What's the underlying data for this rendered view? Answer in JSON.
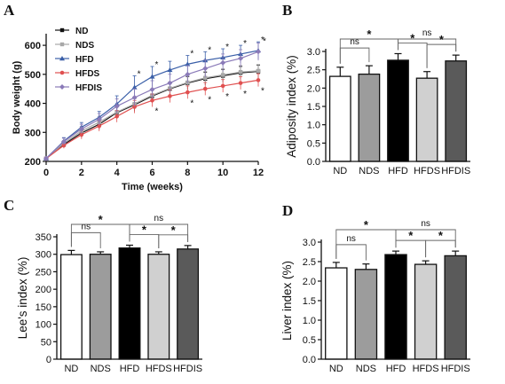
{
  "panels": [
    "A",
    "B",
    "C",
    "D"
  ],
  "chart_data": [
    {
      "id": "A",
      "type": "line",
      "xlabel": "Time (weeks)",
      "ylabel": "Body weight (g)",
      "xlim": [
        0,
        12
      ],
      "ylim": [
        200,
        640
      ],
      "xticks": [
        0,
        2,
        4,
        6,
        8,
        10,
        12
      ],
      "yticks": [
        200,
        300,
        400,
        500,
        600
      ],
      "x": [
        0,
        1,
        2,
        3,
        4,
        5,
        6,
        7,
        8,
        9,
        10,
        11,
        12
      ],
      "legend_position": "top-left",
      "series": [
        {
          "name": "ND",
          "color": "#111111",
          "marker": "square",
          "values": [
            210,
            258,
            298,
            328,
            368,
            395,
            425,
            450,
            470,
            485,
            495,
            505,
            510
          ],
          "errors": [
            5,
            10,
            15,
            18,
            20,
            22,
            22,
            22,
            22,
            22,
            22,
            22,
            22
          ]
        },
        {
          "name": "NDS",
          "color": "#a8a8a8",
          "marker": "square",
          "values": [
            210,
            262,
            305,
            335,
            370,
            398,
            428,
            452,
            472,
            488,
            498,
            508,
            512
          ],
          "errors": [
            5,
            10,
            15,
            18,
            20,
            22,
            22,
            22,
            22,
            22,
            22,
            22,
            22
          ]
        },
        {
          "name": "HFD",
          "color": "#3a5fa8",
          "marker": "triangle",
          "values": [
            210,
            270,
            318,
            352,
            398,
            455,
            492,
            515,
            535,
            548,
            558,
            570,
            582
          ],
          "errors": [
            5,
            12,
            16,
            20,
            28,
            40,
            35,
            30,
            30,
            30,
            30,
            30,
            30
          ]
        },
        {
          "name": "HFDS",
          "color": "#e05050",
          "marker": "circle",
          "values": [
            210,
            255,
            292,
            322,
            355,
            388,
            410,
            425,
            438,
            450,
            460,
            470,
            480
          ],
          "errors": [
            5,
            10,
            15,
            18,
            20,
            22,
            22,
            22,
            22,
            22,
            22,
            22,
            22
          ]
        },
        {
          "name": "HFDIS",
          "color": "#8a7ab8",
          "marker": "diamond",
          "values": [
            210,
            268,
            312,
            345,
            390,
            420,
            448,
            470,
            500,
            520,
            540,
            555,
            578
          ],
          "errors": [
            5,
            12,
            16,
            20,
            25,
            30,
            30,
            30,
            30,
            30,
            30,
            30,
            30
          ]
        }
      ],
      "sig_marks": [
        {
          "series": "HFD",
          "x": 5,
          "label": "*"
        },
        {
          "series": "HFD",
          "x": 6,
          "label": "*"
        },
        {
          "series": "HFD",
          "x": 8,
          "label": "*"
        },
        {
          "series": "HFD",
          "x": 9,
          "label": "*"
        },
        {
          "series": "HFD",
          "x": 10,
          "label": "*"
        },
        {
          "series": "HFD",
          "x": 11,
          "label": "*"
        },
        {
          "series": "HFD",
          "x": 12,
          "label": "*"
        },
        {
          "series": "HFDIS",
          "x": 12,
          "label": "*"
        },
        {
          "series": "HFDS",
          "x": 6,
          "label": "*"
        },
        {
          "series": "HFDS",
          "x": 8,
          "label": "*"
        },
        {
          "series": "HFDS",
          "x": 9,
          "label": "*"
        },
        {
          "series": "HFDS",
          "x": 10,
          "label": "*"
        },
        {
          "series": "HFDS",
          "x": 11,
          "label": "*"
        },
        {
          "series": "HFDS",
          "x": 12,
          "label": "*"
        }
      ]
    },
    {
      "id": "B",
      "type": "bar",
      "ylabel": "Adiposity index  (%)",
      "ylim": [
        0,
        3.0
      ],
      "yticks": [
        "0.0",
        "0.5",
        "1.0",
        "1.5",
        "2.0",
        "2.5",
        "3.0"
      ],
      "categories": [
        "ND",
        "NDS",
        "HFD",
        "HFDS",
        "HFDIS"
      ],
      "values": [
        2.32,
        2.38,
        2.76,
        2.27,
        2.74
      ],
      "errors": [
        0.25,
        0.23,
        0.18,
        0.18,
        0.16
      ],
      "colors": [
        "#ffffff",
        "#9c9c9c",
        "#000000",
        "#d0d0d0",
        "#5a5a5a"
      ],
      "comparisons": [
        {
          "from": 0,
          "to": 1,
          "label": "ns"
        },
        {
          "from": 0,
          "to": 2,
          "label": "*"
        },
        {
          "from": 2,
          "to": 4,
          "label": "ns"
        },
        {
          "from": 2,
          "to": 3,
          "label": "*"
        },
        {
          "from": 3,
          "to": 4,
          "label": "*"
        }
      ]
    },
    {
      "id": "C",
      "type": "bar",
      "ylabel": "Lee's index  (%)",
      "ylim": [
        0,
        350
      ],
      "yticks": [
        "0",
        "50",
        "100",
        "150",
        "200",
        "250",
        "300",
        "350"
      ],
      "categories": [
        "ND",
        "NDS",
        "HFD",
        "HFDS",
        "HFDIS"
      ],
      "values": [
        299,
        300,
        318,
        300,
        315
      ],
      "errors": [
        12,
        7,
        8,
        7,
        10
      ],
      "colors": [
        "#ffffff",
        "#9c9c9c",
        "#000000",
        "#d0d0d0",
        "#5a5a5a"
      ],
      "comparisons": [
        {
          "from": 0,
          "to": 1,
          "label": "ns"
        },
        {
          "from": 0,
          "to": 2,
          "label": "*"
        },
        {
          "from": 2,
          "to": 4,
          "label": "ns"
        },
        {
          "from": 2,
          "to": 3,
          "label": "*"
        },
        {
          "from": 3,
          "to": 4,
          "label": "*"
        }
      ]
    },
    {
      "id": "D",
      "type": "bar",
      "ylabel": "Liver index  (%)",
      "ylim": [
        0,
        3.0
      ],
      "yticks": [
        "0.0",
        "0.5",
        "1.0",
        "1.5",
        "2.0",
        "2.5",
        "3.0"
      ],
      "categories": [
        "ND",
        "NDS",
        "HFD",
        "HFDS",
        "HFDIS"
      ],
      "values": [
        2.34,
        2.3,
        2.68,
        2.43,
        2.65
      ],
      "errors": [
        0.14,
        0.14,
        0.09,
        0.09,
        0.12
      ],
      "colors": [
        "#ffffff",
        "#9c9c9c",
        "#000000",
        "#d0d0d0",
        "#5a5a5a"
      ],
      "comparisons": [
        {
          "from": 0,
          "to": 1,
          "label": "ns"
        },
        {
          "from": 0,
          "to": 2,
          "label": "*"
        },
        {
          "from": 2,
          "to": 4,
          "label": "ns"
        },
        {
          "from": 2,
          "to": 3,
          "label": "*"
        },
        {
          "from": 3,
          "to": 4,
          "label": "*"
        }
      ]
    }
  ]
}
